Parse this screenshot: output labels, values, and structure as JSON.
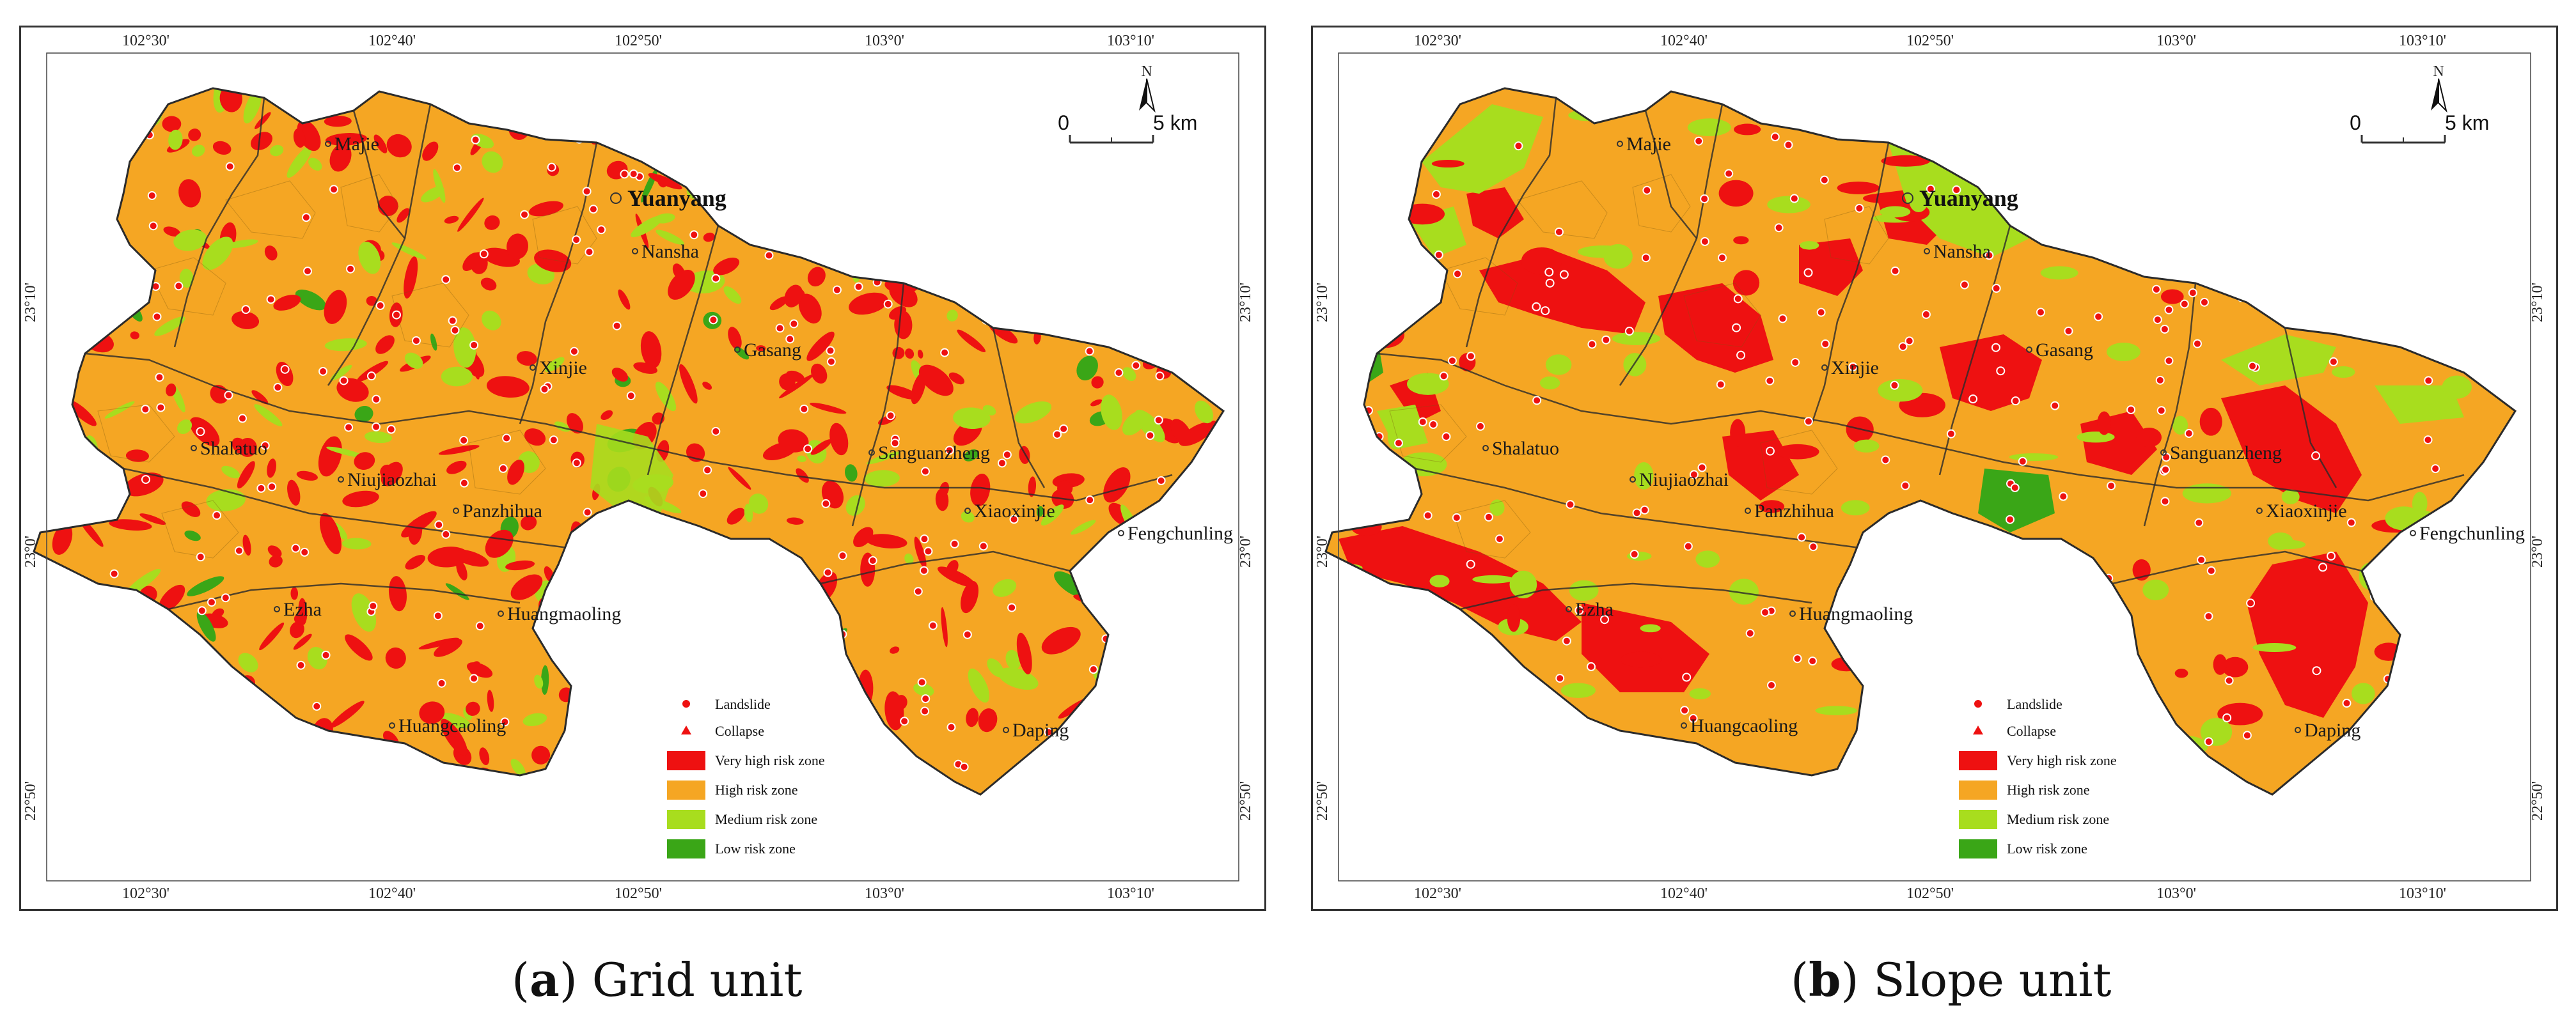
{
  "colors": {
    "very_high": "#ee1111",
    "high": "#f5a623",
    "medium": "#a8dd1e",
    "low": "#3aa617",
    "point": "#ee1111",
    "boundary": "#2b2b2b"
  },
  "icons": [
    "north-arrow-icon",
    "landslide-icon",
    "collapse-icon"
  ],
  "axes": {
    "top_ticks": [
      "102°30'",
      "102°40'",
      "102°50'",
      "103°0'",
      "103°10'"
    ],
    "bottom_ticks": [
      "102°30'",
      "102°40'",
      "102°50'",
      "103°0'",
      "103°10'"
    ],
    "left_ticks": [
      "23°10'",
      "23°0'",
      "22°50'"
    ],
    "right_ticks": [
      "23°10'",
      "23°0'",
      "22°50'"
    ]
  },
  "county": "Yuanyang",
  "towns": [
    "Majie",
    "Nansha",
    "Xinjie",
    "Gasang",
    "Shalatuo",
    "Niujiaozhai",
    "Panzhihua",
    "Sanguanzheng",
    "Xiaoxinjie",
    "Fengchunling",
    "Ezha",
    "Huangmaoling",
    "Huangcaoling",
    "Daping"
  ],
  "scale": {
    "north": "N",
    "zero": "0",
    "five": "5 km"
  },
  "legend": {
    "landslide": "Landslide",
    "collapse": "Collapse",
    "very_high": "Very high risk zone",
    "high": "High risk zone",
    "medium": "Medium risk zone",
    "low": "Low risk zone"
  },
  "panels": [
    {
      "letter": "a",
      "caption": "Grid unit"
    },
    {
      "letter": "b",
      "caption": "Slope unit"
    }
  ]
}
